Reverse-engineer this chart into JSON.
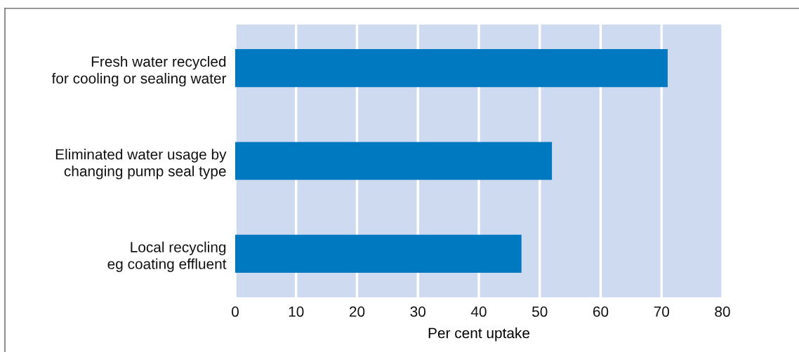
{
  "chart_data": {
    "type": "bar",
    "orientation": "horizontal",
    "categories": [
      "Fresh water recycled\nfor cooling or sealing water",
      "Eliminated water usage by\nchanging pump seal type",
      "Local recycling\neg coating effluent"
    ],
    "values": [
      71,
      52,
      47
    ],
    "color": "#0079c1",
    "xlabel": "Per cent uptake",
    "xlim": [
      0,
      80
    ],
    "xticks": [
      0,
      10,
      20,
      30,
      40,
      50,
      60,
      70,
      80
    ],
    "grid": "x"
  }
}
